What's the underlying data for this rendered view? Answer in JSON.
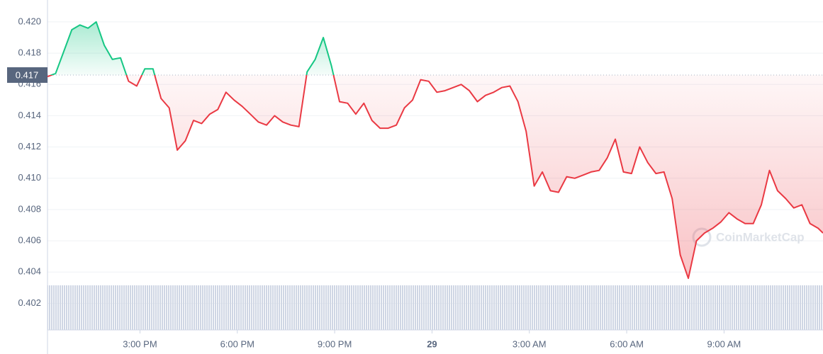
{
  "chart_data": {
    "type": "line",
    "watermark": "CoinMarketCap",
    "baseline": {
      "value": 0.4166,
      "label": "0.417"
    },
    "xlim": [
      12.15,
      36.05
    ],
    "xticks": [
      {
        "value": 15,
        "label": "3:00 PM"
      },
      {
        "value": 18,
        "label": "6:00 PM"
      },
      {
        "value": 21,
        "label": "9:00 PM"
      },
      {
        "value": 24,
        "label": "29"
      },
      {
        "value": 27,
        "label": "3:00 AM"
      },
      {
        "value": 30,
        "label": "6:00 AM"
      },
      {
        "value": 33,
        "label": "9:00 AM"
      }
    ],
    "ylim": [
      0.4003,
      0.4214
    ],
    "yticks": [
      0.402,
      0.404,
      0.406,
      0.408,
      {
        "value": 0.41,
        "label": "0.410"
      },
      0.412,
      0.414,
      0.416,
      0.418,
      {
        "value": 0.42,
        "label": "0.420"
      }
    ],
    "grid": true,
    "up_color": "#16c784",
    "down_color": "#ea3943",
    "x": [
      12.15,
      12.4,
      12.65,
      12.9,
      13.15,
      13.4,
      13.65,
      13.9,
      14.15,
      14.4,
      14.65,
      14.9,
      15.15,
      15.4,
      15.65,
      15.9,
      16.15,
      16.4,
      16.65,
      16.9,
      17.15,
      17.4,
      17.65,
      17.9,
      18.15,
      18.4,
      18.65,
      18.9,
      19.15,
      19.4,
      19.65,
      19.9,
      20.15,
      20.4,
      20.65,
      20.9,
      21.15,
      21.4,
      21.65,
      21.9,
      22.15,
      22.4,
      22.65,
      22.9,
      23.15,
      23.4,
      23.65,
      23.9,
      24.15,
      24.4,
      24.65,
      24.9,
      25.15,
      25.4,
      25.65,
      25.9,
      26.15,
      26.4,
      26.65,
      26.9,
      27.15,
      27.4,
      27.65,
      27.9,
      28.15,
      28.4,
      28.65,
      28.9,
      29.15,
      29.4,
      29.65,
      29.9,
      30.15,
      30.4,
      30.65,
      30.9,
      31.15,
      31.4,
      31.65,
      31.9,
      32.15,
      32.4,
      32.65,
      32.9,
      33.15,
      33.4,
      33.65,
      33.9,
      34.15,
      34.4,
      34.65,
      34.9,
      35.15,
      35.4,
      35.65,
      35.9,
      36.05
    ],
    "values": [
      0.4165,
      0.4167,
      0.4181,
      0.4195,
      0.4198,
      0.4196,
      0.42,
      0.4185,
      0.4176,
      0.4177,
      0.4162,
      0.4159,
      0.417,
      0.417,
      0.4151,
      0.4145,
      0.4118,
      0.4124,
      0.4137,
      0.4135,
      0.4141,
      0.4144,
      0.4155,
      0.415,
      0.4146,
      0.4141,
      0.4136,
      0.4134,
      0.414,
      0.4136,
      0.4134,
      0.4133,
      0.4168,
      0.4176,
      0.419,
      0.4172,
      0.4149,
      0.4148,
      0.4141,
      0.4148,
      0.4137,
      0.4132,
      0.4132,
      0.4134,
      0.4145,
      0.415,
      0.4163,
      0.4162,
      0.4155,
      0.4156,
      0.4158,
      0.416,
      0.4156,
      0.4149,
      0.4153,
      0.4155,
      0.4158,
      0.4159,
      0.4149,
      0.413,
      0.4095,
      0.4104,
      0.4092,
      0.4091,
      0.4101,
      0.41,
      0.4102,
      0.4104,
      0.4105,
      0.4113,
      0.4125,
      0.4104,
      0.4103,
      0.412,
      0.411,
      0.4103,
      0.4104,
      0.4087,
      0.4051,
      0.4036,
      0.406,
      0.4065,
      0.4068,
      0.4072,
      0.4078,
      0.4074,
      0.4071,
      0.4071,
      0.4083,
      0.4105,
      0.4092,
      0.4087,
      0.4081,
      0.4083,
      0.4071,
      0.4068,
      0.4065
    ]
  }
}
